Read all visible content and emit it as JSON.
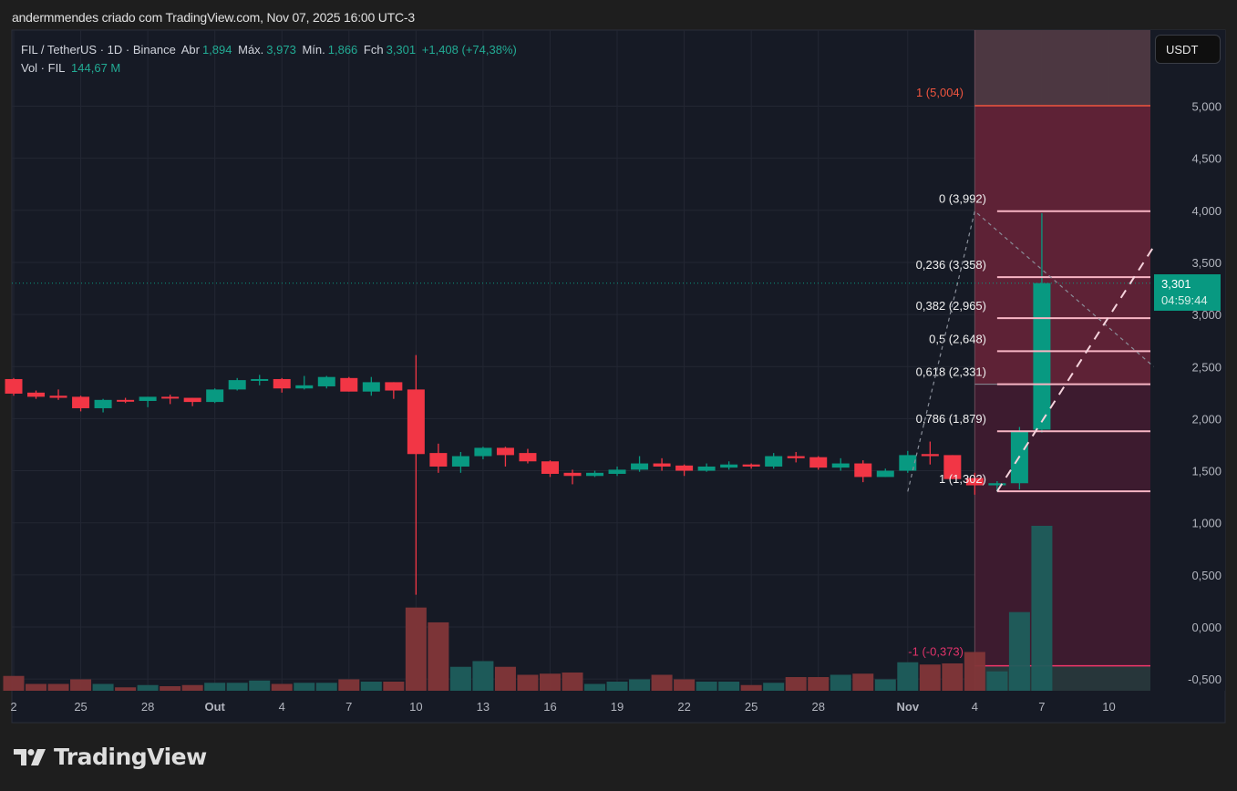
{
  "header": {
    "attribution": "andermmendes criado com TradingView.com, Nov 07, 2025 16:00 UTC-3"
  },
  "legend": {
    "symbol": "FIL / TetherUS · 1D · Binance",
    "open_label": "Abr",
    "open": "1,894",
    "high_label": "Máx.",
    "high": "3,973",
    "low_label": "Mín.",
    "low": "1,866",
    "close_label": "Fch",
    "close": "3,301",
    "change": "+1,408 (+74,38%)",
    "vol_label": "Vol · FIL",
    "vol": "144,67 M"
  },
  "currency_button": "USDT",
  "last_price": {
    "price": "3,301",
    "countdown": "04:59:44"
  },
  "colors": {
    "up": "#089981",
    "down": "#f23645",
    "vol_up": "#1e5e5c",
    "vol_down": "#823638",
    "background": "#161a25",
    "fib_line": "#f7b5c4",
    "target": "#f23645"
  },
  "branding": {
    "logo_text": "TradingView",
    "logo_icon": "tradingview-logo-icon"
  },
  "chart_data": {
    "type": "candlestick",
    "price_axis": {
      "ticks": [
        "5,000",
        "4,500",
        "4,000",
        "3,500",
        "3,000",
        "2,500",
        "2,000",
        "1,500",
        "1,000",
        "0,500",
        "0,000",
        "-0,500"
      ],
      "values": [
        5,
        4.5,
        4,
        3.5,
        3,
        2.5,
        2,
        1.5,
        1,
        0.5,
        0,
        -0.5
      ],
      "range": [
        -0.6,
        5.7
      ]
    },
    "time_axis": {
      "ticks": [
        {
          "label": "2",
          "date": "2025-09-22",
          "bold": false
        },
        {
          "label": "25",
          "date": "2025-09-25",
          "bold": false
        },
        {
          "label": "28",
          "date": "2025-09-28",
          "bold": false
        },
        {
          "label": "Out",
          "date": "2025-10-01",
          "bold": true
        },
        {
          "label": "4",
          "date": "2025-10-04",
          "bold": false
        },
        {
          "label": "7",
          "date": "2025-10-07",
          "bold": false
        },
        {
          "label": "10",
          "date": "2025-10-10",
          "bold": false
        },
        {
          "label": "13",
          "date": "2025-10-13",
          "bold": false
        },
        {
          "label": "16",
          "date": "2025-10-16",
          "bold": false
        },
        {
          "label": "19",
          "date": "2025-10-19",
          "bold": false
        },
        {
          "label": "22",
          "date": "2025-10-22",
          "bold": false
        },
        {
          "label": "25",
          "date": "2025-10-25",
          "bold": false
        },
        {
          "label": "28",
          "date": "2025-10-28",
          "bold": false
        },
        {
          "label": "Nov",
          "date": "2025-11-01",
          "bold": true
        },
        {
          "label": "4",
          "date": "2025-11-04",
          "bold": false
        },
        {
          "label": "7",
          "date": "2025-11-07",
          "bold": false
        },
        {
          "label": "10",
          "date": "2025-11-10",
          "bold": false
        }
      ]
    },
    "candles_fields": [
      "date",
      "open",
      "high",
      "low",
      "close",
      "volume_M"
    ],
    "candles": [
      [
        "2025-09-22",
        2.38,
        2.39,
        2.22,
        2.24,
        13
      ],
      [
        "2025-09-23",
        2.25,
        2.27,
        2.19,
        2.21,
        6
      ],
      [
        "2025-09-24",
        2.22,
        2.28,
        2.18,
        2.2,
        6
      ],
      [
        "2025-09-25",
        2.21,
        2.22,
        2.07,
        2.1,
        10
      ],
      [
        "2025-09-26",
        2.1,
        2.19,
        2.06,
        2.18,
        6
      ],
      [
        "2025-09-27",
        2.18,
        2.2,
        2.15,
        2.17,
        3
      ],
      [
        "2025-09-28",
        2.17,
        2.21,
        2.11,
        2.21,
        5
      ],
      [
        "2025-09-29",
        2.21,
        2.23,
        2.14,
        2.2,
        4
      ],
      [
        "2025-09-30",
        2.2,
        2.2,
        2.12,
        2.16,
        5
      ],
      [
        "2025-10-01",
        2.16,
        2.29,
        2.15,
        2.28,
        7
      ],
      [
        "2025-10-02",
        2.28,
        2.39,
        2.27,
        2.37,
        7
      ],
      [
        "2025-10-03",
        2.37,
        2.42,
        2.32,
        2.38,
        9
      ],
      [
        "2025-10-04",
        2.38,
        2.39,
        2.25,
        2.29,
        6
      ],
      [
        "2025-10-05",
        2.29,
        2.41,
        2.28,
        2.32,
        7
      ],
      [
        "2025-10-06",
        2.31,
        2.41,
        2.29,
        2.4,
        7
      ],
      [
        "2025-10-07",
        2.39,
        2.4,
        2.26,
        2.26,
        10
      ],
      [
        "2025-10-08",
        2.26,
        2.4,
        2.22,
        2.35,
        8
      ],
      [
        "2025-10-09",
        2.35,
        2.35,
        2.19,
        2.27,
        8
      ],
      [
        "2025-10-10",
        2.28,
        2.61,
        0.31,
        1.66,
        73
      ],
      [
        "2025-10-11",
        1.67,
        1.76,
        1.48,
        1.54,
        60
      ],
      [
        "2025-10-12",
        1.54,
        1.68,
        1.48,
        1.64,
        21
      ],
      [
        "2025-10-13",
        1.64,
        1.73,
        1.61,
        1.72,
        26
      ],
      [
        "2025-10-14",
        1.72,
        1.73,
        1.54,
        1.65,
        21
      ],
      [
        "2025-10-15",
        1.67,
        1.71,
        1.57,
        1.59,
        14
      ],
      [
        "2025-10-16",
        1.59,
        1.6,
        1.44,
        1.47,
        15
      ],
      [
        "2025-10-17",
        1.48,
        1.51,
        1.37,
        1.45,
        16
      ],
      [
        "2025-10-18",
        1.45,
        1.5,
        1.44,
        1.48,
        6
      ],
      [
        "2025-10-19",
        1.47,
        1.54,
        1.45,
        1.51,
        8
      ],
      [
        "2025-10-20",
        1.51,
        1.64,
        1.49,
        1.57,
        10
      ],
      [
        "2025-10-21",
        1.57,
        1.62,
        1.5,
        1.54,
        14
      ],
      [
        "2025-10-22",
        1.55,
        1.56,
        1.45,
        1.5,
        10
      ],
      [
        "2025-10-23",
        1.5,
        1.57,
        1.49,
        1.54,
        8
      ],
      [
        "2025-10-24",
        1.53,
        1.59,
        1.51,
        1.56,
        8
      ],
      [
        "2025-10-25",
        1.56,
        1.57,
        1.52,
        1.54,
        5
      ],
      [
        "2025-10-26",
        1.54,
        1.67,
        1.52,
        1.64,
        7
      ],
      [
        "2025-10-27",
        1.64,
        1.68,
        1.58,
        1.62,
        12
      ],
      [
        "2025-10-28",
        1.63,
        1.64,
        1.51,
        1.53,
        12
      ],
      [
        "2025-10-29",
        1.53,
        1.62,
        1.5,
        1.57,
        14
      ],
      [
        "2025-10-30",
        1.57,
        1.6,
        1.39,
        1.44,
        15
      ],
      [
        "2025-10-31",
        1.44,
        1.52,
        1.44,
        1.5,
        10
      ],
      [
        "2025-11-01",
        1.5,
        1.69,
        1.48,
        1.65,
        25
      ],
      [
        "2025-11-02",
        1.66,
        1.78,
        1.56,
        1.64,
        23
      ],
      [
        "2025-11-03",
        1.65,
        1.65,
        1.42,
        1.42,
        24
      ],
      [
        "2025-11-04",
        1.43,
        1.48,
        1.27,
        1.36,
        34
      ],
      [
        "2025-11-05",
        1.36,
        1.4,
        1.3,
        1.38,
        17
      ],
      [
        "2025-11-06",
        1.38,
        1.92,
        1.32,
        1.88,
        69
      ],
      [
        "2025-11-07",
        1.894,
        3.973,
        1.866,
        3.301,
        144.67
      ]
    ],
    "fibonacci": {
      "levels": [
        {
          "label": "0 (3,992)",
          "value": 3.992
        },
        {
          "label": "0,236 (3,358)",
          "value": 3.358
        },
        {
          "label": "0,382 (2,965)",
          "value": 2.965
        },
        {
          "label": "0,5 (2,648)",
          "value": 2.648
        },
        {
          "label": "0,618 (2,331)",
          "value": 2.331
        },
        {
          "label": "0,786 (1,879)",
          "value": 1.879
        },
        {
          "label": "1 (1,302)",
          "value": 1.302
        }
      ],
      "start_date": "2025-11-05",
      "end_date": "2025-11-12"
    },
    "position_tool": {
      "start_date": "2025-11-04",
      "target": {
        "label": "1 (5,004)",
        "value": 5.004
      },
      "entry": 2.331,
      "stop": {
        "label": "-1 (-0,373)",
        "value": -0.373
      }
    },
    "trend_lines": [
      {
        "style": "dashed-gray",
        "points": [
          [
            "2025-11-01",
            1.3
          ],
          [
            "2025-11-04",
            3.992
          ],
          [
            "2025-11-12",
            2.5
          ]
        ]
      },
      {
        "style": "dashed-white",
        "points": [
          [
            "2025-11-05",
            1.302
          ],
          [
            "2025-11-12",
            3.65
          ]
        ]
      }
    ],
    "grid": true
  }
}
